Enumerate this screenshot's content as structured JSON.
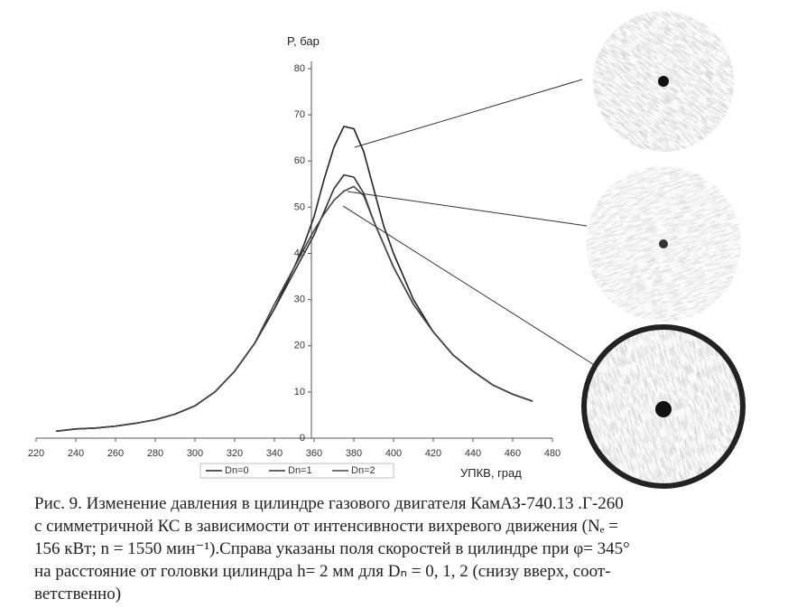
{
  "chart_data": {
    "type": "line",
    "ylabel": "P, бар",
    "xlabel": "УПКВ, град",
    "x": [
      230,
      240,
      250,
      260,
      270,
      280,
      290,
      300,
      310,
      320,
      330,
      340,
      350,
      355,
      360,
      365,
      370,
      375,
      380,
      385,
      390,
      395,
      400,
      410,
      420,
      430,
      440,
      450,
      460,
      470
    ],
    "series": [
      {
        "name": "Dn=0",
        "color": "#222222",
        "values": [
          1.5,
          2,
          2.2,
          2.6,
          3.2,
          4,
          5.2,
          7,
          10,
          14.5,
          20.5,
          28,
          37,
          42,
          48,
          56,
          63,
          67.5,
          67,
          62,
          54,
          46,
          40,
          30,
          23,
          18,
          14.5,
          11.5,
          9.5,
          8
        ]
      },
      {
        "name": "Dn=1",
        "color": "#333333",
        "values": [
          1.5,
          2,
          2.2,
          2.6,
          3.2,
          4,
          5.2,
          7,
          10,
          14.5,
          20.5,
          28,
          36,
          40,
          44,
          49,
          54,
          57,
          56.5,
          53,
          47,
          42,
          37,
          29,
          23,
          18,
          14.5,
          11.5,
          9.5,
          8
        ]
      },
      {
        "name": "Dn=2",
        "color": "#444444",
        "values": [
          1.5,
          2,
          2.2,
          2.6,
          3.2,
          4,
          5.2,
          7,
          10,
          14.5,
          20.5,
          29,
          37,
          41,
          45,
          48.5,
          51.5,
          53.5,
          54.5,
          52.5,
          47,
          42,
          37,
          29,
          23,
          18,
          14.5,
          11.5,
          9.5,
          8
        ]
      }
    ],
    "xlim": [
      220,
      480
    ],
    "xticks": [
      220,
      240,
      260,
      280,
      300,
      320,
      340,
      360,
      380,
      400,
      420,
      440,
      460,
      480
    ],
    "ylim": [
      0,
      80
    ],
    "yticks": [
      0,
      10,
      20,
      30,
      40,
      50,
      60,
      70,
      80
    ],
    "grid": false,
    "legend": "bottom"
  },
  "caption": [
    "Рис. 9. Изменение давления в цилиндре газового двигателя КамАЗ-740.13 .Г-260",
    "с симметричной КС в зависимости от интенсивности вихревого движения (Nₑ =",
    "156 кВт; n = 1550 мин⁻¹).Справа указаны поля скоростей в цилиндре при φ= 345°",
    "на расстояние от головки цилиндра h= 2 мм для Dₙ = 0, 1, 2 (снизу вверх, соот-",
    "ветственно)"
  ]
}
